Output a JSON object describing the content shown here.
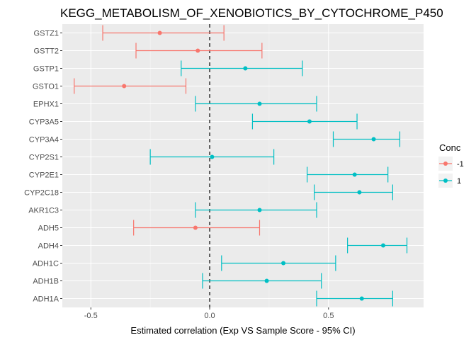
{
  "chart_data": {
    "type": "errorbar",
    "title": "KEGG_METABOLISM_OF_XENOBIOTICS_BY_CYTOCHROME_P450",
    "xlabel": "Estimated correlation (Exp VS Sample Score - 95% CI)",
    "ylabel": "",
    "xlim": [
      -0.62,
      0.9
    ],
    "xticks": [
      -0.5,
      0.0,
      0.5
    ],
    "xtick_labels": [
      "-0.5",
      "0.0",
      "0.5"
    ],
    "reference_line": {
      "x": 0,
      "style": "dashed"
    },
    "grid": true,
    "legend": {
      "title": "Conc",
      "position": "right",
      "entries": [
        {
          "label": "-1",
          "color": "#F8766D"
        },
        {
          "label": "1",
          "color": "#00BFC4"
        }
      ]
    },
    "categories": [
      "GSTZ1",
      "GSTT2",
      "GSTP1",
      "GSTO1",
      "EPHX1",
      "CYP3A5",
      "CYP3A4",
      "CYP2S1",
      "CYP2E1",
      "CYP2C18",
      "AKR1C3",
      "ADH5",
      "ADH4",
      "ADH1C",
      "ADH1B",
      "ADH1A"
    ],
    "points": [
      {
        "gene": "GSTZ1",
        "estimate": -0.21,
        "low": -0.45,
        "high": 0.06,
        "conc": "-1"
      },
      {
        "gene": "GSTT2",
        "estimate": -0.05,
        "low": -0.31,
        "high": 0.22,
        "conc": "-1"
      },
      {
        "gene": "GSTP1",
        "estimate": 0.15,
        "low": -0.12,
        "high": 0.39,
        "conc": "1"
      },
      {
        "gene": "GSTO1",
        "estimate": -0.36,
        "low": -0.57,
        "high": -0.1,
        "conc": "-1"
      },
      {
        "gene": "EPHX1",
        "estimate": 0.21,
        "low": -0.06,
        "high": 0.45,
        "conc": "1"
      },
      {
        "gene": "CYP3A5",
        "estimate": 0.42,
        "low": 0.18,
        "high": 0.62,
        "conc": "1"
      },
      {
        "gene": "CYP3A4",
        "estimate": 0.69,
        "low": 0.52,
        "high": 0.8,
        "conc": "1"
      },
      {
        "gene": "CYP2S1",
        "estimate": 0.01,
        "low": -0.25,
        "high": 0.27,
        "conc": "1"
      },
      {
        "gene": "CYP2E1",
        "estimate": 0.61,
        "low": 0.41,
        "high": 0.75,
        "conc": "1"
      },
      {
        "gene": "CYP2C18",
        "estimate": 0.63,
        "low": 0.44,
        "high": 0.77,
        "conc": "1"
      },
      {
        "gene": "AKR1C3",
        "estimate": 0.21,
        "low": -0.06,
        "high": 0.45,
        "conc": "1"
      },
      {
        "gene": "ADH5",
        "estimate": -0.06,
        "low": -0.32,
        "high": 0.21,
        "conc": "-1"
      },
      {
        "gene": "ADH4",
        "estimate": 0.73,
        "low": 0.58,
        "high": 0.83,
        "conc": "1"
      },
      {
        "gene": "ADH1C",
        "estimate": 0.31,
        "low": 0.05,
        "high": 0.53,
        "conc": "1"
      },
      {
        "gene": "ADH1B",
        "estimate": 0.24,
        "low": -0.03,
        "high": 0.47,
        "conc": "1"
      },
      {
        "gene": "ADH1A",
        "estimate": 0.64,
        "low": 0.45,
        "high": 0.77,
        "conc": "1"
      }
    ]
  }
}
